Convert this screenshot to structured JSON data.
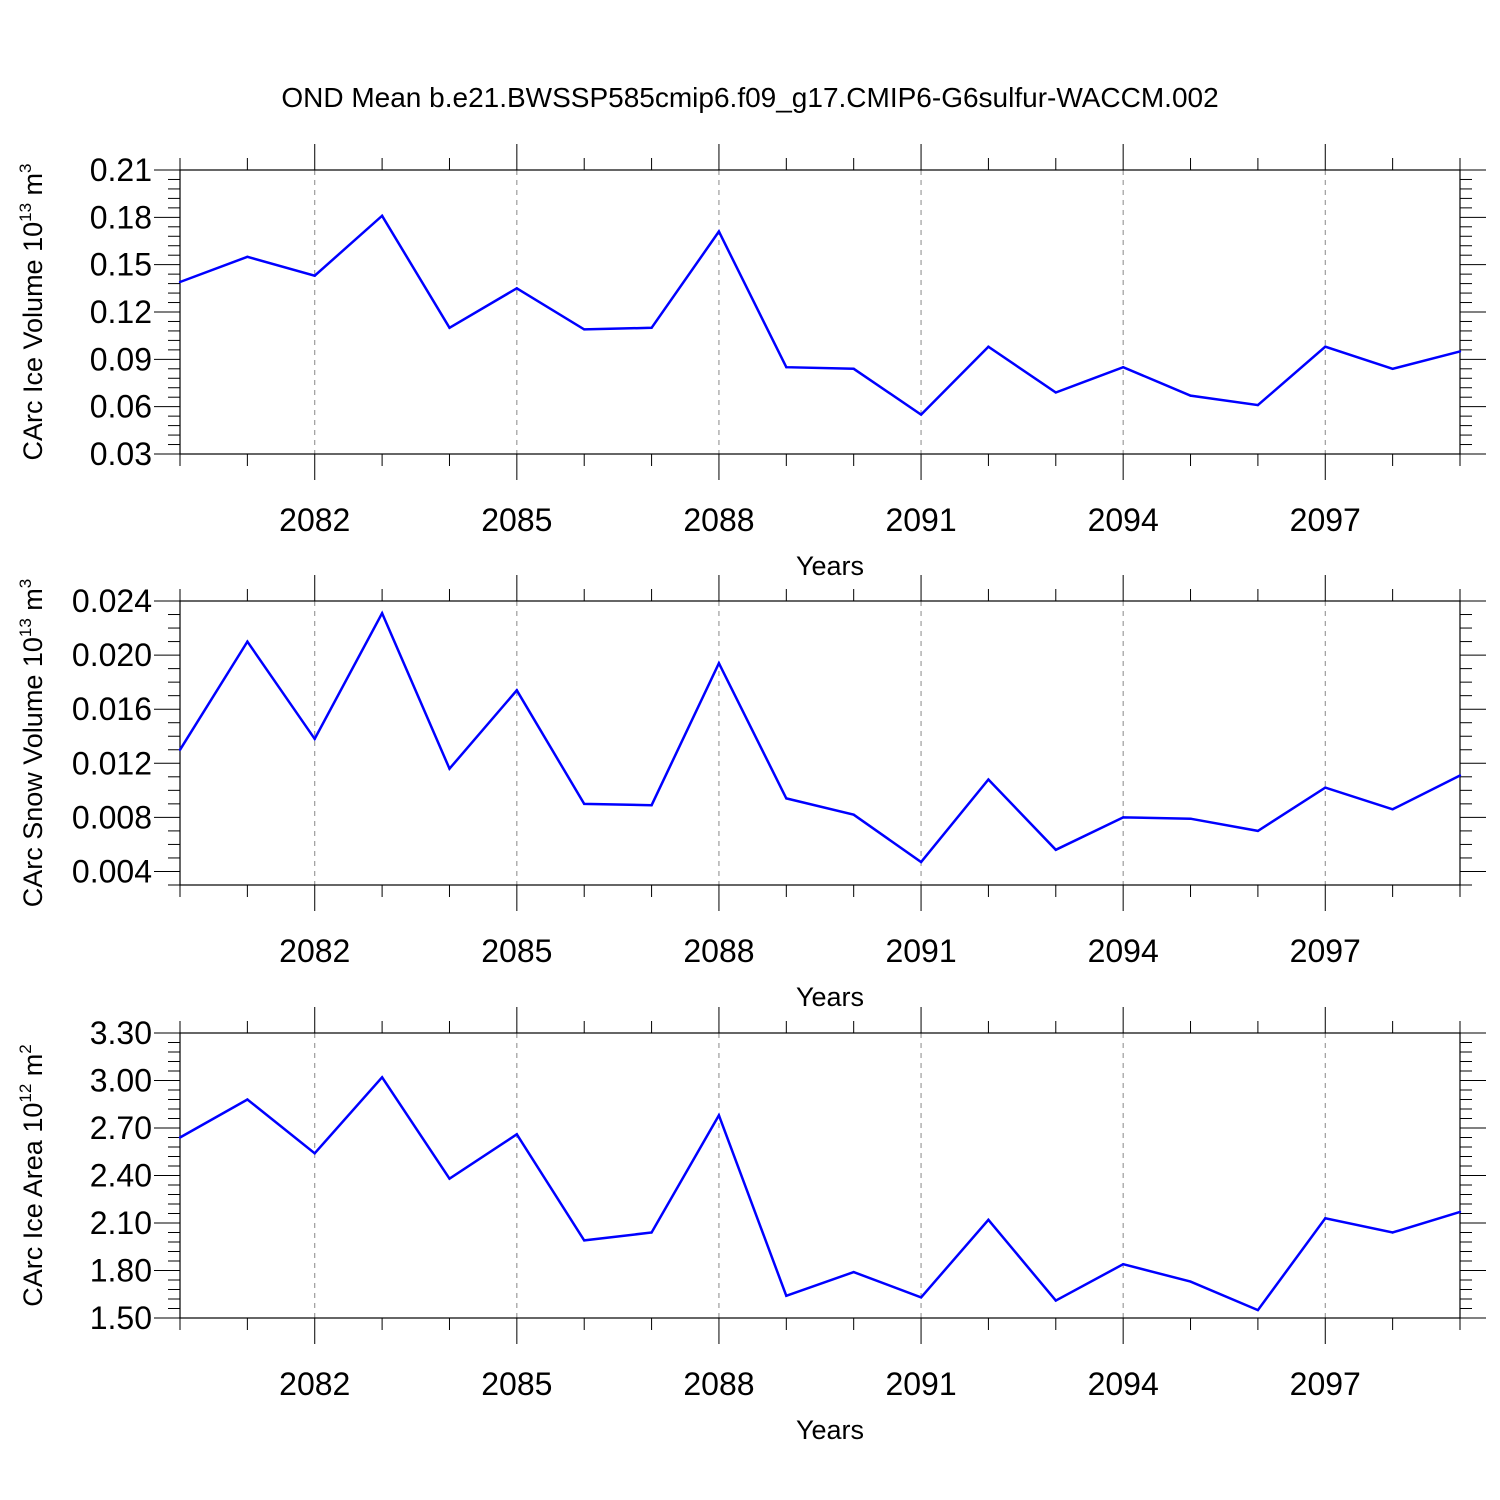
{
  "title": "OND Mean b.e21.BWSSP585cmip6.f09_g17.CMIP6-G6sulfur-WACCM.002",
  "line_color": "#0000ff",
  "chart_data": [
    {
      "type": "line",
      "title": "OND Mean b.e21.BWSSP585cmip6.f09_g17.CMIP6-G6sulfur-WACCM.002",
      "xlabel": "Years",
      "ylabel": {
        "main": "CArc Ice Volume 10",
        "exp": "13",
        "unit": " m",
        "unit_exp": "3"
      },
      "x": [
        2080,
        2081,
        2082,
        2083,
        2084,
        2085,
        2086,
        2087,
        2088,
        2089,
        2090,
        2091,
        2092,
        2093,
        2094,
        2095,
        2096,
        2097,
        2098,
        2099
      ],
      "values": [
        0.139,
        0.155,
        0.143,
        0.181,
        0.11,
        0.135,
        0.109,
        0.11,
        0.171,
        0.085,
        0.084,
        0.055,
        0.098,
        0.069,
        0.085,
        0.067,
        0.061,
        0.098,
        0.084,
        0.095
      ],
      "xlim": [
        2080,
        2099
      ],
      "ylim": [
        0.03,
        0.21
      ],
      "yticks": [
        0.03,
        0.06,
        0.09,
        0.12,
        0.15,
        0.18,
        0.21
      ],
      "yticklabels": [
        "0.03",
        "0.06",
        "0.09",
        "0.12",
        "0.15",
        "0.18",
        "0.21"
      ],
      "yminor": 0.006,
      "xticks": [
        2082,
        2085,
        2088,
        2091,
        2094,
        2097
      ],
      "xticklabels": [
        "2082",
        "2085",
        "2088",
        "2091",
        "2094",
        "2097"
      ],
      "grid": "vertical dashed at major x ticks"
    },
    {
      "type": "line",
      "xlabel": "Years",
      "ylabel": {
        "main": "CArc Snow Volume 10",
        "exp": "13",
        "unit": " m",
        "unit_exp": "3"
      },
      "x": [
        2080,
        2081,
        2082,
        2083,
        2084,
        2085,
        2086,
        2087,
        2088,
        2089,
        2090,
        2091,
        2092,
        2093,
        2094,
        2095,
        2096,
        2097,
        2098,
        2099
      ],
      "values": [
        0.013,
        0.021,
        0.0138,
        0.0231,
        0.0116,
        0.0174,
        0.009,
        0.0089,
        0.0194,
        0.0094,
        0.0082,
        0.0047,
        0.0108,
        0.0056,
        0.008,
        0.0079,
        0.007,
        0.0102,
        0.0086,
        0.0111
      ],
      "xlim": [
        2080,
        2099
      ],
      "ylim": [
        0.003,
        0.024
      ],
      "yticks": [
        0.004,
        0.008,
        0.012,
        0.016,
        0.02,
        0.024
      ],
      "yticklabels": [
        "0.004",
        "0.008",
        "0.012",
        "0.016",
        "0.020",
        "0.024"
      ],
      "yminor": 0.001,
      "xticks": [
        2082,
        2085,
        2088,
        2091,
        2094,
        2097
      ],
      "xticklabels": [
        "2082",
        "2085",
        "2088",
        "2091",
        "2094",
        "2097"
      ],
      "grid": "vertical dashed at major x ticks"
    },
    {
      "type": "line",
      "xlabel": "Years",
      "ylabel": {
        "main": "CArc Ice Area 10",
        "exp": "12",
        "unit": " m",
        "unit_exp": "2"
      },
      "x": [
        2080,
        2081,
        2082,
        2083,
        2084,
        2085,
        2086,
        2087,
        2088,
        2089,
        2090,
        2091,
        2092,
        2093,
        2094,
        2095,
        2096,
        2097,
        2098,
        2099
      ],
      "values": [
        2.64,
        2.88,
        2.54,
        3.02,
        2.38,
        2.66,
        1.99,
        2.04,
        2.78,
        1.64,
        1.79,
        1.63,
        2.12,
        1.61,
        1.84,
        1.73,
        1.55,
        2.13,
        2.04,
        2.17
      ],
      "xlim": [
        2080,
        2099
      ],
      "ylim": [
        1.5,
        3.3
      ],
      "yticks": [
        1.5,
        1.8,
        2.1,
        2.4,
        2.7,
        3.0,
        3.3
      ],
      "yticklabels": [
        "1.50",
        "1.80",
        "2.10",
        "2.40",
        "2.70",
        "3.00",
        "3.30"
      ],
      "yminor": 0.06,
      "xticks": [
        2082,
        2085,
        2088,
        2091,
        2094,
        2097
      ],
      "xticklabels": [
        "2082",
        "2085",
        "2088",
        "2091",
        "2094",
        "2097"
      ],
      "grid": "vertical dashed at major x ticks"
    }
  ]
}
